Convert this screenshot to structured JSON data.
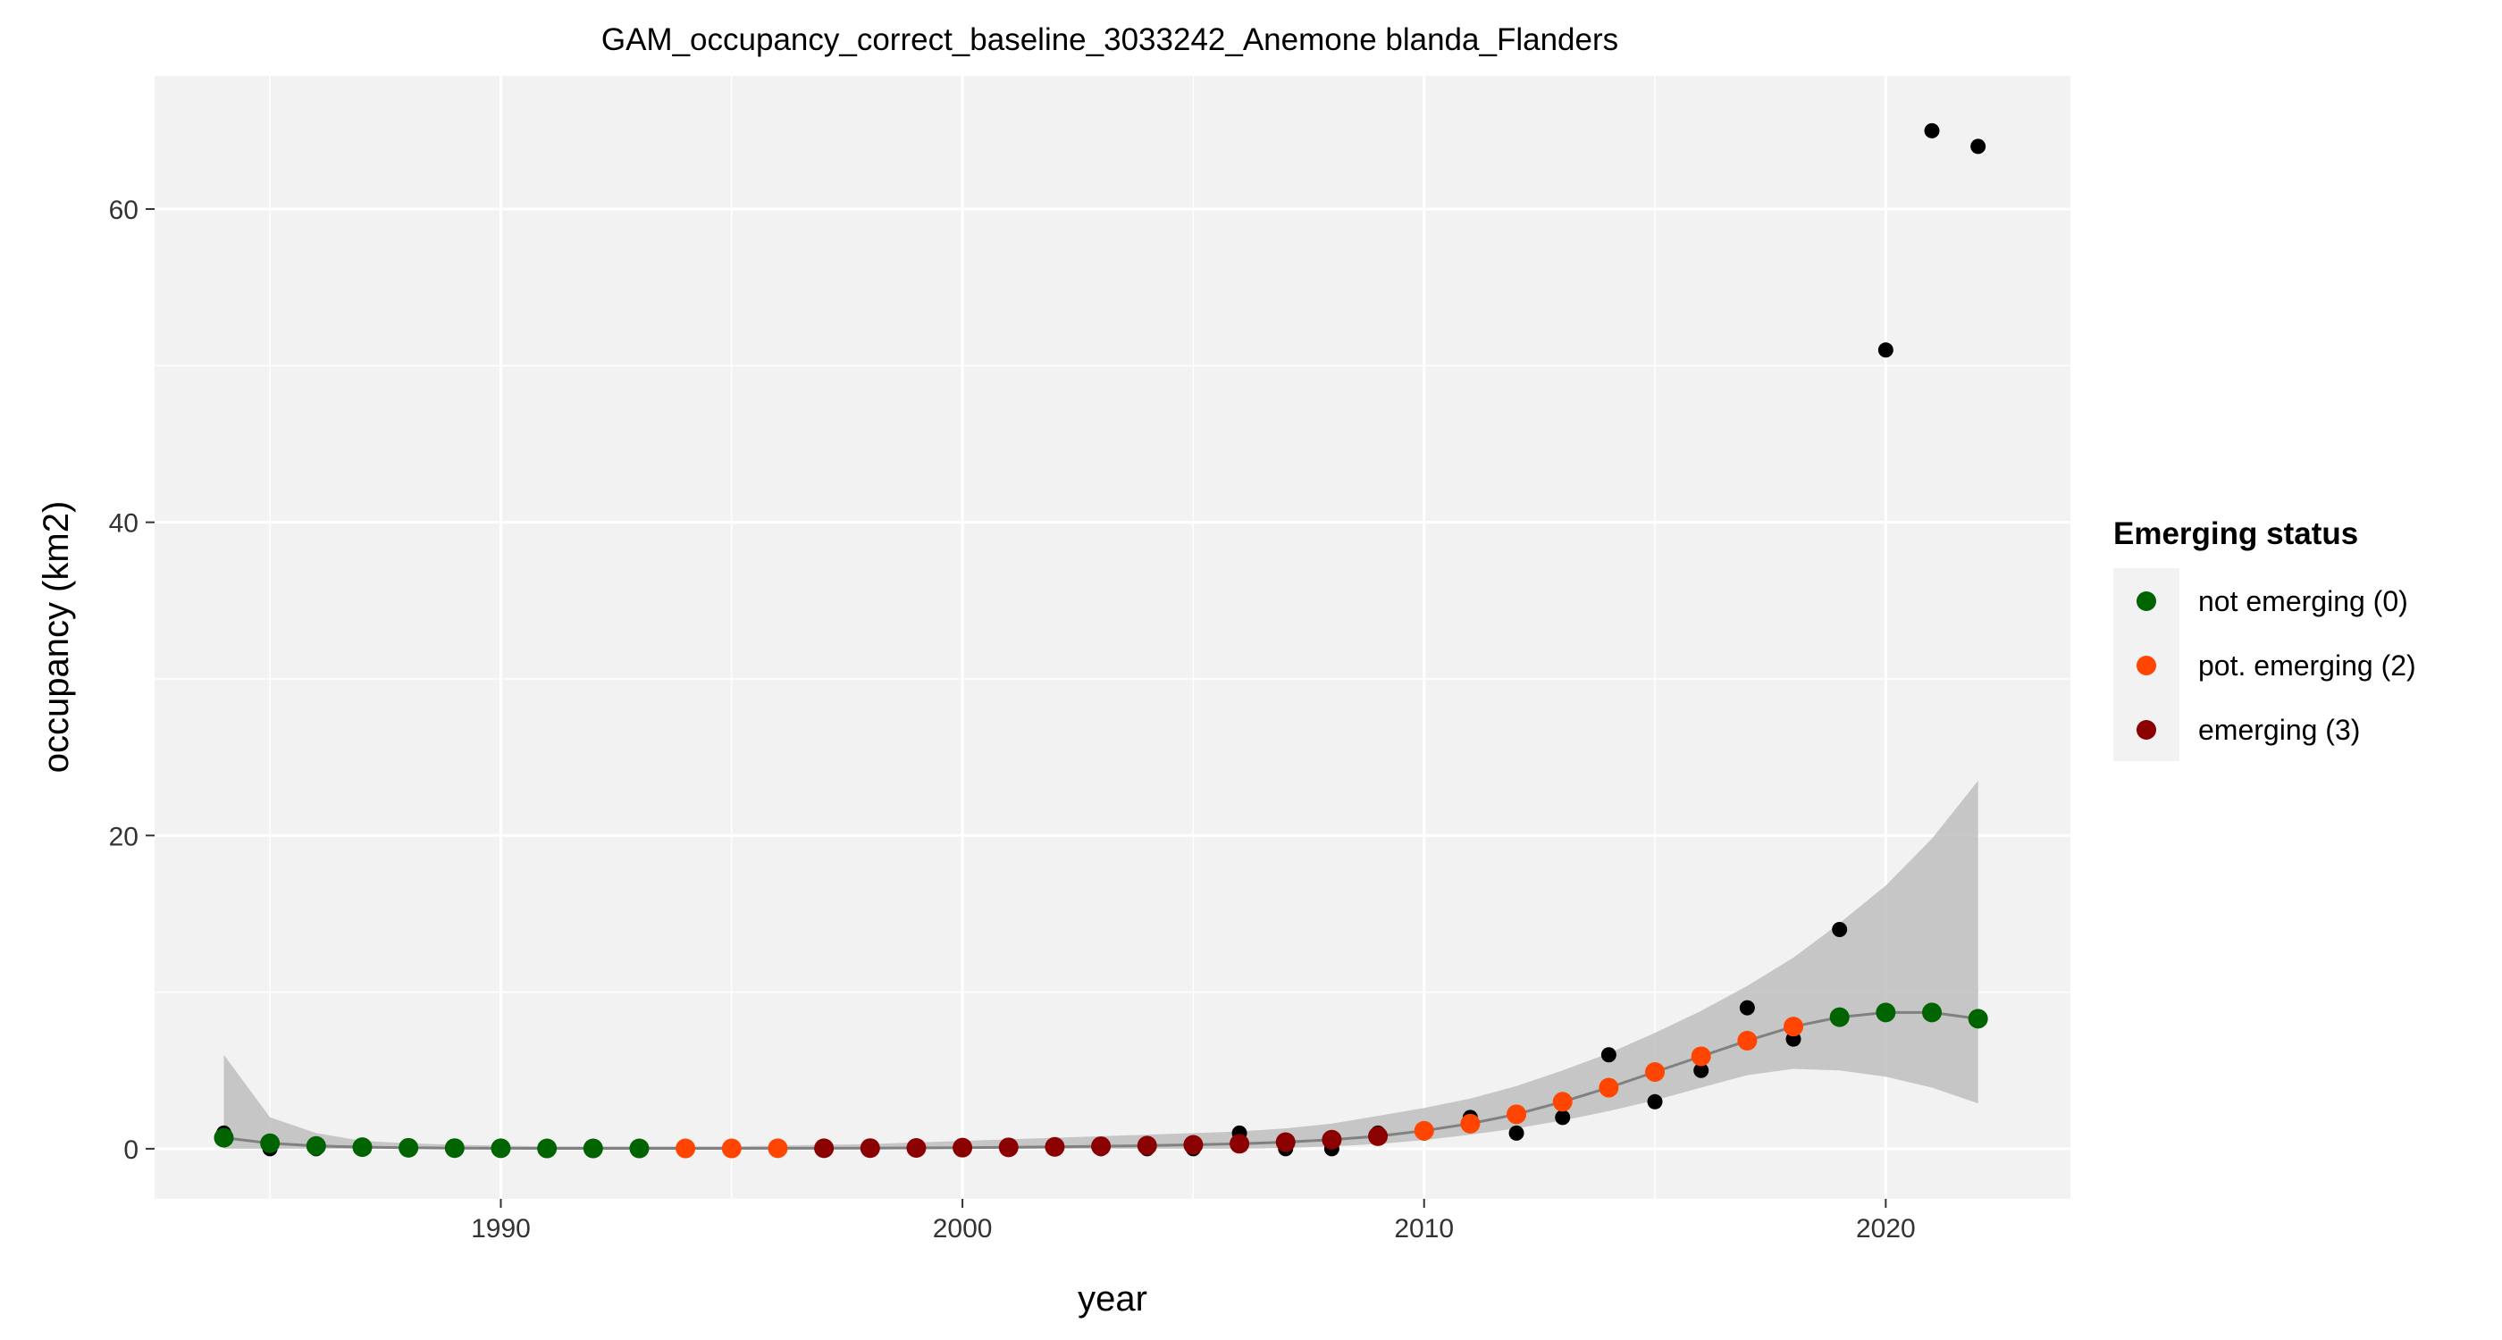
{
  "chart_data": {
    "type": "scatter",
    "title": "GAM_occupancy_correct_baseline_3033242_Anemone blanda_Flanders",
    "xlabel": "year",
    "ylabel": "occupancy (km2)",
    "xlim": [
      1982.5,
      2024.0
    ],
    "ylim": [
      -3.2,
      68.5
    ],
    "x_ticks": [
      1990,
      2000,
      2010,
      2020
    ],
    "y_ticks": [
      0,
      20,
      40,
      60
    ],
    "grid": true,
    "legend": {
      "title": "Emerging status",
      "position": "right",
      "items": [
        {
          "label": "not emerging (0)",
          "color": "#006400"
        },
        {
          "label": "pot. emerging (2)",
          "color": "#FF4500"
        },
        {
          "label": "emerging (3)",
          "color": "#8B0000"
        }
      ]
    },
    "colors": {
      "panel_background": "#F2F2F2",
      "grid": "#FFFFFF",
      "ribbon": "#BEBEBE",
      "fit_line": "#808080",
      "observed": "#000000"
    },
    "series": [
      {
        "name": "observed",
        "x": [
          1984,
          1985,
          1986,
          1987,
          1988,
          1989,
          1990,
          1991,
          1992,
          1993,
          1994,
          1995,
          1996,
          1997,
          1998,
          1999,
          2000,
          2001,
          2002,
          2003,
          2004,
          2005,
          2006,
          2007,
          2008,
          2009,
          2010,
          2011,
          2012,
          2013,
          2014,
          2015,
          2016,
          2017,
          2018,
          2019,
          2020,
          2021,
          2022
        ],
        "y": [
          1,
          0,
          0,
          0,
          0,
          0,
          0,
          0,
          0,
          0,
          0,
          0,
          0,
          0,
          0,
          0,
          0,
          0,
          0,
          0,
          0,
          0,
          1,
          0,
          0,
          1,
          1,
          2,
          1,
          2,
          6,
          3,
          5,
          9,
          7,
          14,
          51,
          65,
          64
        ]
      },
      {
        "name": "fitted",
        "x": [
          1984,
          1985,
          1986,
          1987,
          1988,
          1989,
          1990,
          1991,
          1992,
          1993,
          1994,
          1995,
          1996,
          1997,
          1998,
          1999,
          2000,
          2001,
          2002,
          2003,
          2004,
          2005,
          2006,
          2007,
          2008,
          2009,
          2010,
          2011,
          2012,
          2013,
          2014,
          2015,
          2016,
          2017,
          2018,
          2019,
          2020,
          2021,
          2022
        ],
        "y": [
          0.7,
          0.35,
          0.18,
          0.1,
          0.06,
          0.04,
          0.03,
          0.02,
          0.02,
          0.02,
          0.02,
          0.02,
          0.03,
          0.03,
          0.04,
          0.05,
          0.07,
          0.09,
          0.12,
          0.16,
          0.2,
          0.25,
          0.32,
          0.42,
          0.58,
          0.8,
          1.15,
          1.6,
          2.2,
          3.0,
          3.9,
          4.9,
          5.9,
          6.9,
          7.8,
          8.4,
          8.7,
          8.7,
          8.3
        ],
        "status": [
          0,
          0,
          0,
          0,
          0,
          0,
          0,
          0,
          0,
          0,
          2,
          2,
          2,
          3,
          3,
          3,
          3,
          3,
          3,
          3,
          3,
          3,
          3,
          3,
          3,
          3,
          2,
          2,
          2,
          2,
          2,
          2,
          2,
          2,
          2,
          0,
          0,
          0,
          0
        ],
        "lower": [
          0,
          0,
          0,
          0,
          0,
          0,
          0,
          0,
          0,
          0,
          0,
          0,
          0,
          0,
          0,
          0,
          0,
          0,
          0,
          0,
          0,
          0,
          0,
          0.05,
          0.15,
          0.3,
          0.55,
          0.9,
          1.3,
          1.8,
          2.4,
          3.1,
          3.9,
          4.7,
          5.1,
          5.0,
          4.6,
          3.9,
          2.9
        ],
        "upper": [
          6.0,
          2.0,
          1.0,
          0.5,
          0.35,
          0.25,
          0.2,
          0.15,
          0.15,
          0.15,
          0.15,
          0.15,
          0.2,
          0.25,
          0.3,
          0.4,
          0.5,
          0.6,
          0.7,
          0.8,
          0.9,
          1.0,
          1.1,
          1.3,
          1.6,
          2.1,
          2.6,
          3.2,
          4.0,
          5.0,
          6.1,
          7.4,
          8.8,
          10.4,
          12.2,
          14.4,
          16.8,
          19.8,
          23.5
        ]
      }
    ]
  }
}
